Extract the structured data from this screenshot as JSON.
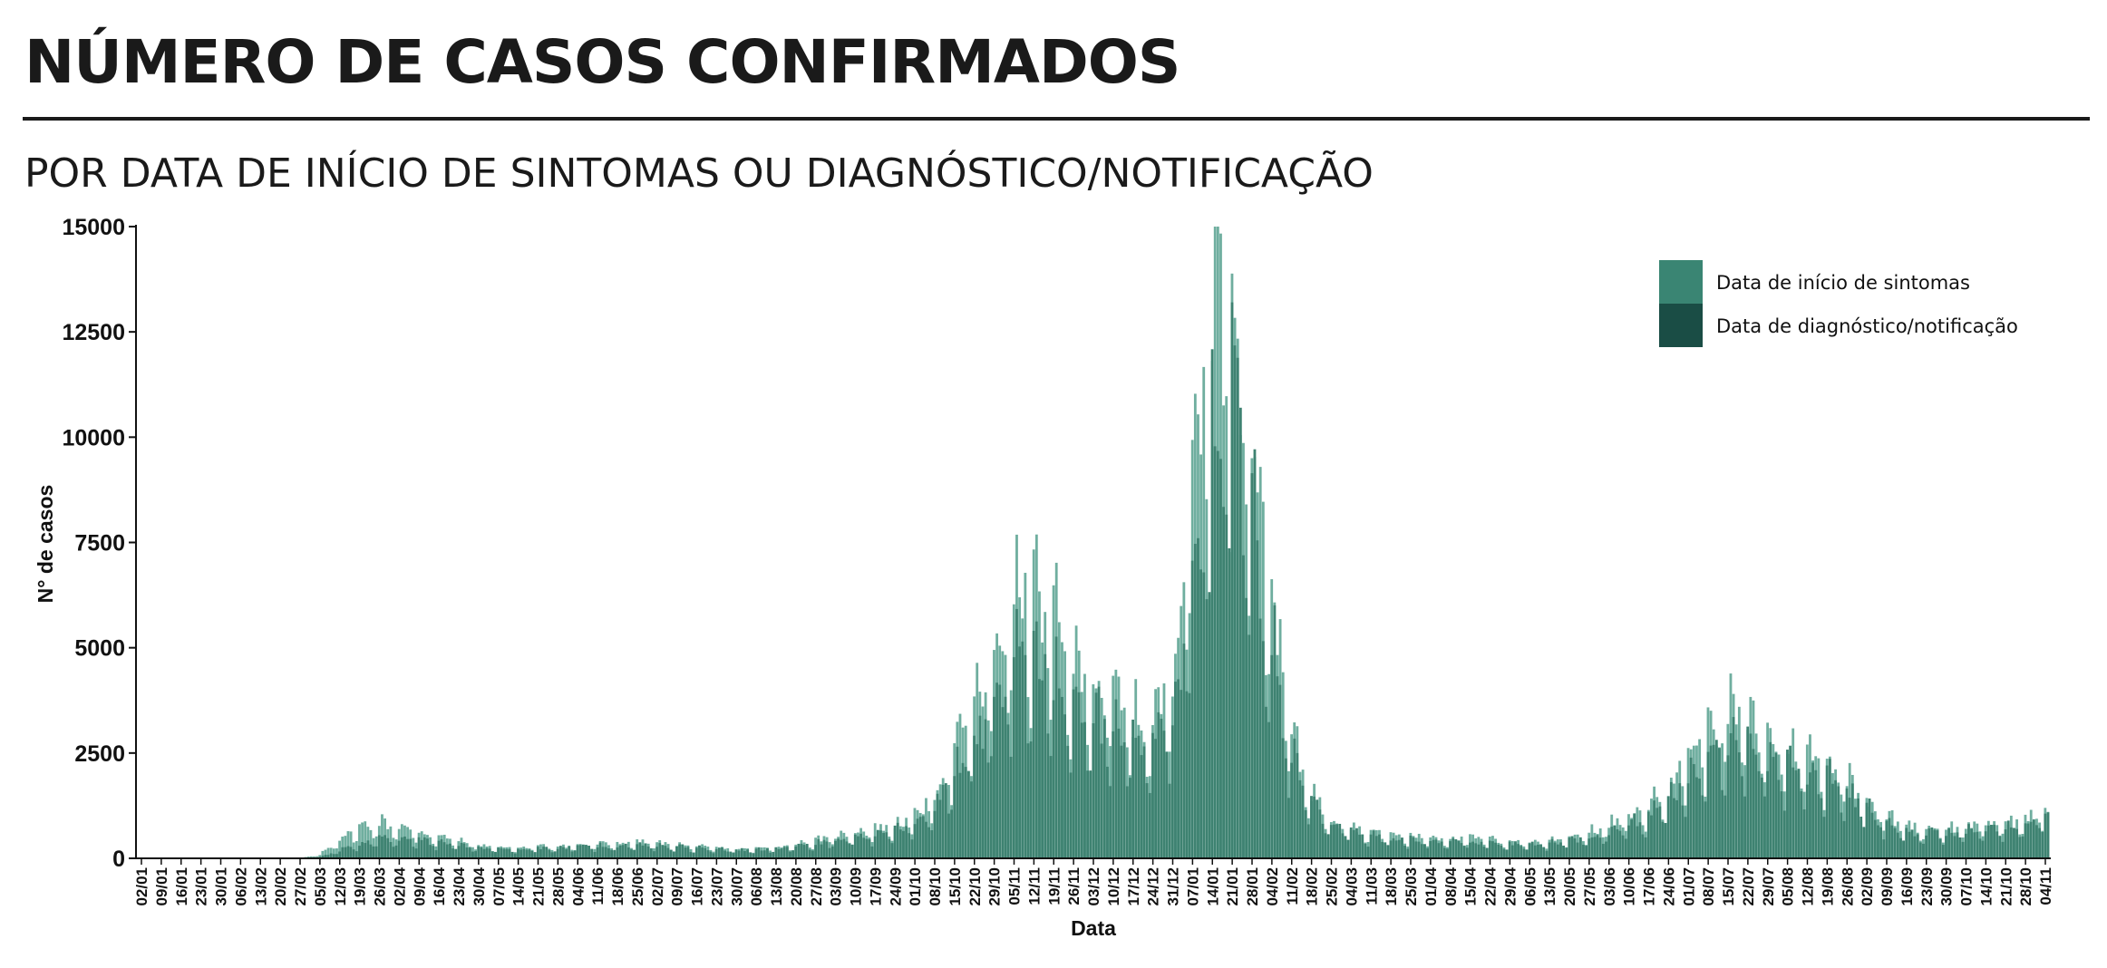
{
  "page": {
    "title": "NÚMERO DE CASOS CONFIRMADOS",
    "subtitle": "POR DATA DE INÍCIO DE SINTOMAS OU DIAGNÓSTICO/NOTIFICAÇÃO"
  },
  "chart_data": {
    "type": "bar",
    "xlabel": "Data",
    "ylabel": "N° de casos",
    "ylim": [
      0,
      15000
    ],
    "yticks": [
      0,
      2500,
      5000,
      7500,
      10000,
      12500,
      15000
    ],
    "x_tick_labels": [
      "02/01",
      "09/01",
      "16/01",
      "23/01",
      "30/01",
      "06/02",
      "13/02",
      "20/02",
      "27/02",
      "05/03",
      "12/03",
      "19/03",
      "26/03",
      "02/04",
      "09/04",
      "16/04",
      "23/04",
      "30/04",
      "07/05",
      "14/05",
      "21/05",
      "28/05",
      "04/06",
      "11/06",
      "18/06",
      "25/06",
      "02/07",
      "09/07",
      "16/07",
      "23/07",
      "30/07",
      "06/08",
      "13/08",
      "20/08",
      "27/08",
      "03/09",
      "10/09",
      "17/09",
      "24/09",
      "01/10",
      "08/10",
      "15/10",
      "22/10",
      "29/10",
      "05/11",
      "12/11",
      "19/11",
      "26/11",
      "03/12",
      "10/12",
      "17/12",
      "24/12",
      "31/12",
      "07/01",
      "14/01",
      "21/01",
      "28/01",
      "04/02",
      "11/02",
      "18/02",
      "25/02",
      "04/03",
      "11/03",
      "18/03",
      "25/03",
      "01/04",
      "08/04",
      "15/04",
      "22/04",
      "29/04",
      "06/05",
      "13/05",
      "20/05",
      "27/05",
      "03/06",
      "10/06",
      "17/06",
      "24/06",
      "01/07",
      "08/07",
      "15/07",
      "22/07",
      "29/07",
      "05/08",
      "12/08",
      "19/08",
      "26/08",
      "02/09",
      "09/09",
      "16/09",
      "23/09",
      "30/09",
      "07/10",
      "14/10",
      "21/10",
      "28/10",
      "04/11"
    ],
    "legend_position": "top-right",
    "grid": false,
    "series": [
      {
        "name": "Data de início de sintomas",
        "color": "#6fae9f",
        "weekly_avg": [
          0,
          0,
          0,
          0,
          0,
          0,
          0,
          0,
          5,
          80,
          450,
          700,
          820,
          720,
          600,
          500,
          380,
          300,
          250,
          230,
          260,
          280,
          300,
          320,
          340,
          360,
          340,
          310,
          270,
          230,
          210,
          220,
          260,
          320,
          400,
          500,
          600,
          680,
          750,
          950,
          1500,
          2400,
          3400,
          4500,
          5900,
          6000,
          5400,
          4200,
          4000,
          3700,
          3200,
          3000,
          4300,
          8800,
          12800,
          13500,
          9500,
          6200,
          2800,
          1500,
          900,
          700,
          600,
          520,
          500,
          480,
          470,
          460,
          420,
          380,
          350,
          400,
          480,
          580,
          750,
          950,
          1200,
          1650,
          2400,
          2900,
          3400,
          3100,
          2750,
          2500,
          2350,
          2200,
          1900,
          1300,
          950,
          750,
          680,
          690,
          730,
          780,
          830,
          860,
          1100
        ]
      },
      {
        "name": "Data de diagnóstico/notificação",
        "color": "#3e8271",
        "weekly_avg": [
          0,
          0,
          0,
          0,
          0,
          0,
          0,
          0,
          2,
          30,
          180,
          330,
          440,
          460,
          420,
          360,
          290,
          240,
          210,
          200,
          220,
          240,
          260,
          280,
          290,
          300,
          290,
          270,
          240,
          210,
          190,
          190,
          220,
          270,
          330,
          410,
          490,
          560,
          630,
          800,
          1200,
          1900,
          2700,
          3500,
          4400,
          4600,
          4200,
          3500,
          3300,
          3000,
          2700,
          2500,
          3400,
          6400,
          9800,
          10600,
          7600,
          5000,
          2300,
          1250,
          780,
          600,
          520,
          450,
          430,
          410,
          400,
          390,
          360,
          330,
          300,
          340,
          400,
          480,
          600,
          780,
          980,
          1350,
          1900,
          2300,
          2700,
          2500,
          2250,
          2050,
          1900,
          1800,
          1550,
          1100,
          800,
          640,
          580,
          590,
          620,
          660,
          700,
          730,
          920
        ]
      }
    ]
  }
}
